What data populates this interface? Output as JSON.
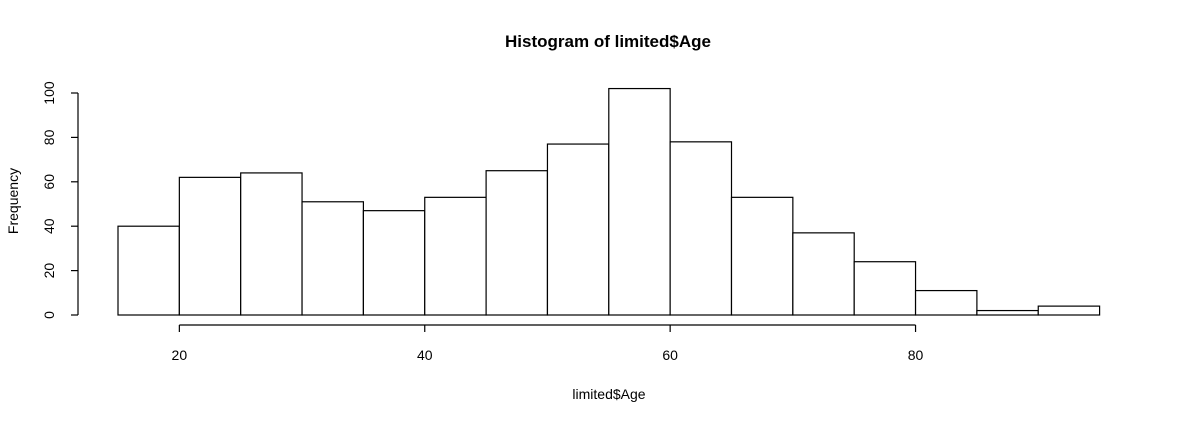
{
  "chart_data": {
    "type": "bar",
    "title": "Histogram of limited$Age",
    "xlabel": "limited$Age",
    "ylabel": "Frequency",
    "bin_width": 5,
    "bin_starts": [
      15,
      20,
      25,
      30,
      35,
      40,
      45,
      50,
      55,
      60,
      65,
      70,
      75,
      80,
      85,
      90
    ],
    "values": [
      40,
      62,
      64,
      51,
      47,
      53,
      65,
      77,
      102,
      78,
      53,
      37,
      24,
      11,
      2,
      4
    ],
    "xlim": [
      15,
      95
    ],
    "ylim": [
      0,
      100
    ],
    "x_ticks": [
      20,
      40,
      60,
      80
    ],
    "y_ticks": [
      0,
      20,
      40,
      60,
      80,
      100
    ],
    "grid": false,
    "legend": "none"
  }
}
